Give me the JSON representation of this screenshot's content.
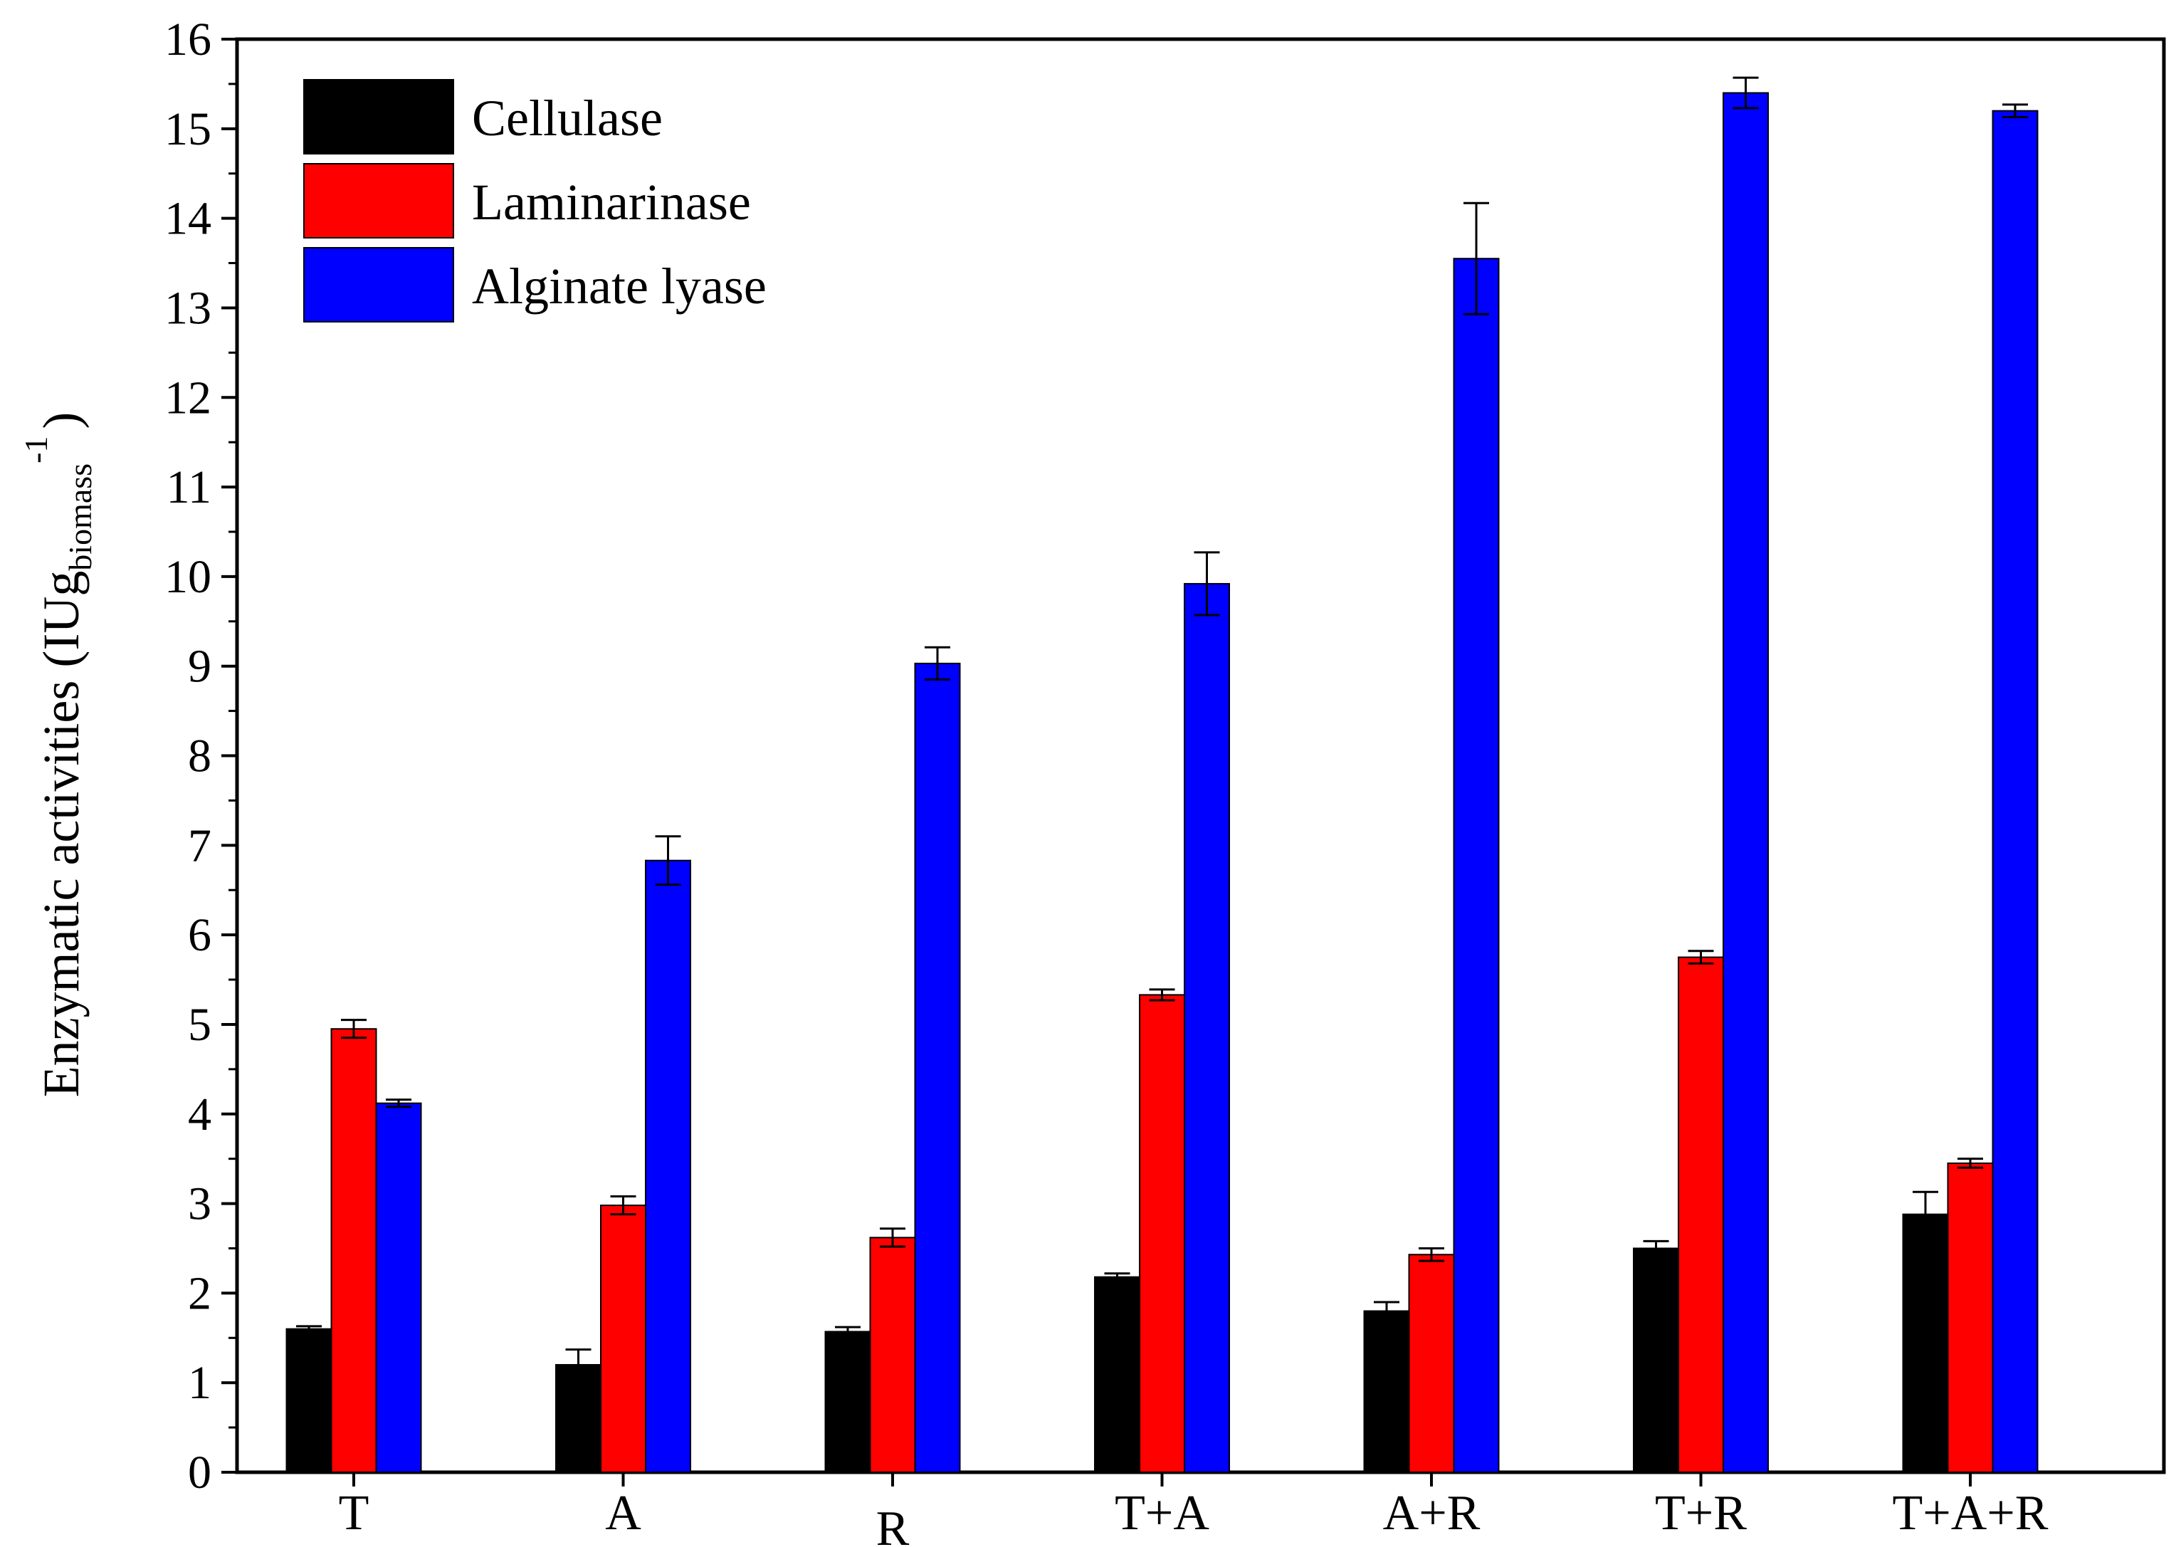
{
  "chart_data": {
    "type": "bar",
    "ylabel": "Enzymatic activities (IUg",
    "ylabel_subscript": "biomass",
    "ylabel_superscript": "-1",
    "ylabel_close": ")",
    "xlabel": "",
    "ylim": [
      0,
      16
    ],
    "yticks": [
      "0",
      "1",
      "2",
      "3",
      "4",
      "5",
      "6",
      "7",
      "8",
      "9",
      "10",
      "11",
      "12",
      "13",
      "14",
      "15",
      "16"
    ],
    "categories": [
      "T",
      "A",
      "R",
      "T+A",
      "A+R",
      "T+R",
      "T+A+R"
    ],
    "series": [
      {
        "name": "Cellulase",
        "color": "#000000",
        "values": [
          1.6,
          1.2,
          1.57,
          2.18,
          1.8,
          2.5,
          2.88
        ],
        "errors": [
          0.03,
          0.17,
          0.05,
          0.04,
          0.1,
          0.08,
          0.25
        ]
      },
      {
        "name": "Laminarinase",
        "color": "#ff0000",
        "values": [
          4.95,
          2.98,
          2.62,
          5.33,
          2.43,
          5.75,
          3.45
        ],
        "errors": [
          0.1,
          0.1,
          0.1,
          0.06,
          0.07,
          0.07,
          0.05
        ]
      },
      {
        "name": "Alginate lyase",
        "color": "#0000ff",
        "values": [
          4.12,
          6.83,
          9.03,
          9.92,
          13.55,
          15.4,
          15.2
        ],
        "errors": [
          0.04,
          0.27,
          0.18,
          0.35,
          0.62,
          0.17,
          0.07
        ]
      }
    ],
    "legend_position": "top-left",
    "grid": false
  }
}
